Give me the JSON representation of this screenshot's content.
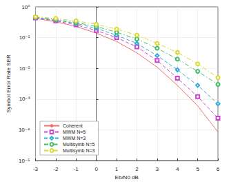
{
  "chart_data": {
    "type": "line",
    "x_label": "Eb/N0 dB",
    "y_label": "Symbol Error Rate SER",
    "x": [
      -3,
      -2,
      -1,
      0,
      1,
      2,
      3,
      4,
      5,
      6
    ],
    "series": [
      {
        "name": "Coherent",
        "color": "#f07070",
        "marker": "none",
        "line_style": "solid",
        "values": [
          0.42,
          0.33,
          0.23,
          0.14,
          0.075,
          0.032,
          0.011,
          0.0028,
          0.0006,
          8.5e-05
        ]
      },
      {
        "name": "MWM N=5",
        "color": "#cc44cc",
        "marker": "square",
        "line_style": "dashed",
        "values": [
          0.44,
          0.35,
          0.26,
          0.17,
          0.1,
          0.05,
          0.018,
          0.0048,
          0.0012,
          0.00024
        ]
      },
      {
        "name": "MWM N=3",
        "color": "#33aadd",
        "marker": "diamond",
        "line_style": "dashed",
        "values": [
          0.45,
          0.37,
          0.29,
          0.2,
          0.12,
          0.065,
          0.026,
          0.009,
          0.0028,
          0.0007
        ]
      },
      {
        "name": "Multisymb N=5",
        "color": "#44bb66",
        "marker": "circle",
        "line_style": "dashdot",
        "values": [
          0.46,
          0.39,
          0.31,
          0.23,
          0.15,
          0.09,
          0.045,
          0.02,
          0.008,
          0.003
        ]
      },
      {
        "name": "Multisymb N=3",
        "color": "#d8d830",
        "marker": "circle",
        "line_style": "dashdot",
        "values": [
          0.48,
          0.42,
          0.35,
          0.27,
          0.19,
          0.12,
          0.065,
          0.033,
          0.014,
          0.005
        ]
      }
    ],
    "xlim": [
      -3,
      6
    ],
    "xticks": [
      -3,
      -2,
      -1,
      0,
      1,
      2,
      3,
      4,
      5,
      6
    ],
    "ylim": [
      1e-05,
      1
    ],
    "yticks": [
      {
        "value": 1e-05,
        "label": "10⁻⁵"
      },
      {
        "value": 0.0001,
        "label": "10⁻⁴"
      },
      {
        "value": 0.001,
        "label": "10⁻³"
      },
      {
        "value": 0.01,
        "label": "10⁻²"
      },
      {
        "value": 0.1,
        "label": "10⁻¹"
      },
      {
        "value": 1,
        "label": "10⁰"
      }
    ],
    "log": "y",
    "grid": true,
    "legend": "lower left"
  }
}
